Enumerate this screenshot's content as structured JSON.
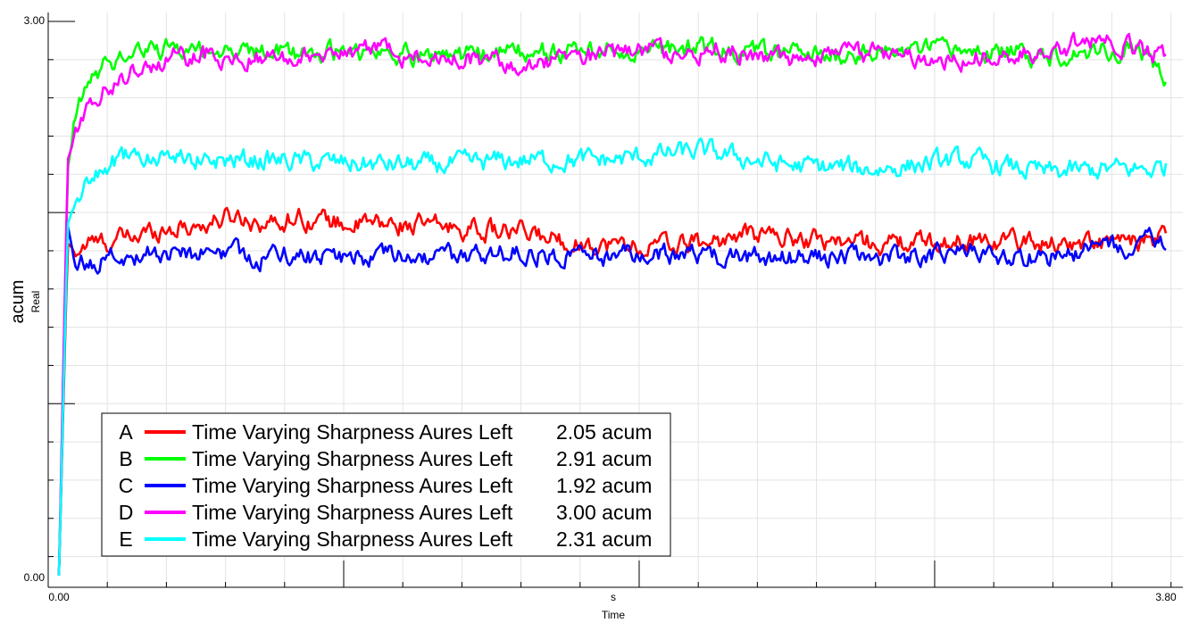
{
  "chart_data": {
    "type": "line",
    "title": "",
    "xlabel": "Time",
    "xunit": "s",
    "ylabel": "acum",
    "ysublabel": "Real",
    "xlim": [
      0.0,
      3.8
    ],
    "ylim": [
      0.0,
      3.0
    ],
    "x_tick_labels": [
      "0.00",
      "3.80"
    ],
    "y_tick_labels": [
      "3.00",
      "0.00"
    ],
    "grid": true,
    "legend_position": "bottom-left",
    "series": [
      {
        "id": "A",
        "name": "Time Varying Sharpness Aures Left",
        "value_label": "2.05 acum",
        "color": "#ff0000",
        "x": [
          0,
          0.03,
          0.06,
          0.1,
          0.15,
          0.25,
          0.35,
          0.5,
          0.6,
          0.75,
          0.8,
          1.0,
          1.2,
          1.4,
          1.6,
          1.8,
          2.0,
          2.2,
          2.4,
          2.6,
          2.8,
          3.0,
          3.2,
          3.4,
          3.6,
          3.75,
          3.8
        ],
        "y": [
          0,
          1.8,
          1.75,
          1.8,
          1.8,
          1.83,
          1.88,
          1.9,
          1.95,
          1.9,
          1.95,
          1.9,
          1.9,
          1.88,
          1.85,
          1.8,
          1.78,
          1.8,
          1.85,
          1.82,
          1.8,
          1.8,
          1.82,
          1.8,
          1.8,
          1.8,
          1.83
        ]
      },
      {
        "id": "B",
        "name": "Time Varying Sharpness Aures Left",
        "value_label": "2.91 acum",
        "color": "#00ff00",
        "x": [
          0,
          0.03,
          0.06,
          0.1,
          0.15,
          0.2,
          0.3,
          0.5,
          0.7,
          1.0,
          1.3,
          1.6,
          1.9,
          2.2,
          2.5,
          2.8,
          3.1,
          3.4,
          3.6,
          3.75,
          3.8
        ],
        "y": [
          0,
          2.2,
          2.5,
          2.65,
          2.75,
          2.8,
          2.85,
          2.85,
          2.83,
          2.83,
          2.82,
          2.83,
          2.84,
          2.85,
          2.82,
          2.83,
          2.84,
          2.82,
          2.85,
          2.82,
          2.65
        ]
      },
      {
        "id": "C",
        "name": "Time Varying Sharpness Aures Left",
        "value_label": "1.92 acum",
        "color": "#0000ff",
        "x": [
          0,
          0.03,
          0.06,
          0.1,
          0.2,
          0.3,
          0.5,
          0.7,
          1.0,
          1.3,
          1.6,
          1.9,
          2.2,
          2.5,
          2.8,
          3.1,
          3.4,
          3.6,
          3.75,
          3.8
        ],
        "y": [
          0,
          1.9,
          1.65,
          1.7,
          1.72,
          1.75,
          1.75,
          1.73,
          1.72,
          1.72,
          1.75,
          1.73,
          1.73,
          1.72,
          1.72,
          1.75,
          1.72,
          1.78,
          1.8,
          1.82
        ]
      },
      {
        "id": "D",
        "name": "Time Varying Sharpness Aures Left",
        "value_label": "3.00 acum",
        "color": "#ff00ff",
        "x": [
          0,
          0.03,
          0.06,
          0.1,
          0.15,
          0.2,
          0.3,
          0.5,
          0.7,
          1.0,
          1.3,
          1.6,
          1.9,
          2.2,
          2.5,
          2.8,
          3.1,
          3.4,
          3.6,
          3.75,
          3.8
        ],
        "y": [
          0,
          2.25,
          2.4,
          2.55,
          2.62,
          2.68,
          2.78,
          2.82,
          2.8,
          2.85,
          2.8,
          2.78,
          2.82,
          2.85,
          2.8,
          2.82,
          2.8,
          2.85,
          2.9,
          2.82,
          2.82
        ]
      },
      {
        "id": "E",
        "name": "Time Varying Sharpness Aures Left",
        "value_label": "2.31 acum",
        "color": "#00ffff",
        "x": [
          0,
          0.03,
          0.06,
          0.1,
          0.15,
          0.2,
          0.3,
          0.5,
          0.7,
          1.0,
          1.3,
          1.6,
          1.9,
          2.2,
          2.5,
          2.8,
          3.1,
          3.4,
          3.6,
          3.75,
          3.8
        ],
        "y": [
          0,
          1.9,
          2.05,
          2.1,
          2.2,
          2.25,
          2.28,
          2.25,
          2.25,
          2.23,
          2.22,
          2.25,
          2.25,
          2.3,
          2.22,
          2.2,
          2.25,
          2.18,
          2.2,
          2.2,
          2.22
        ]
      }
    ]
  }
}
